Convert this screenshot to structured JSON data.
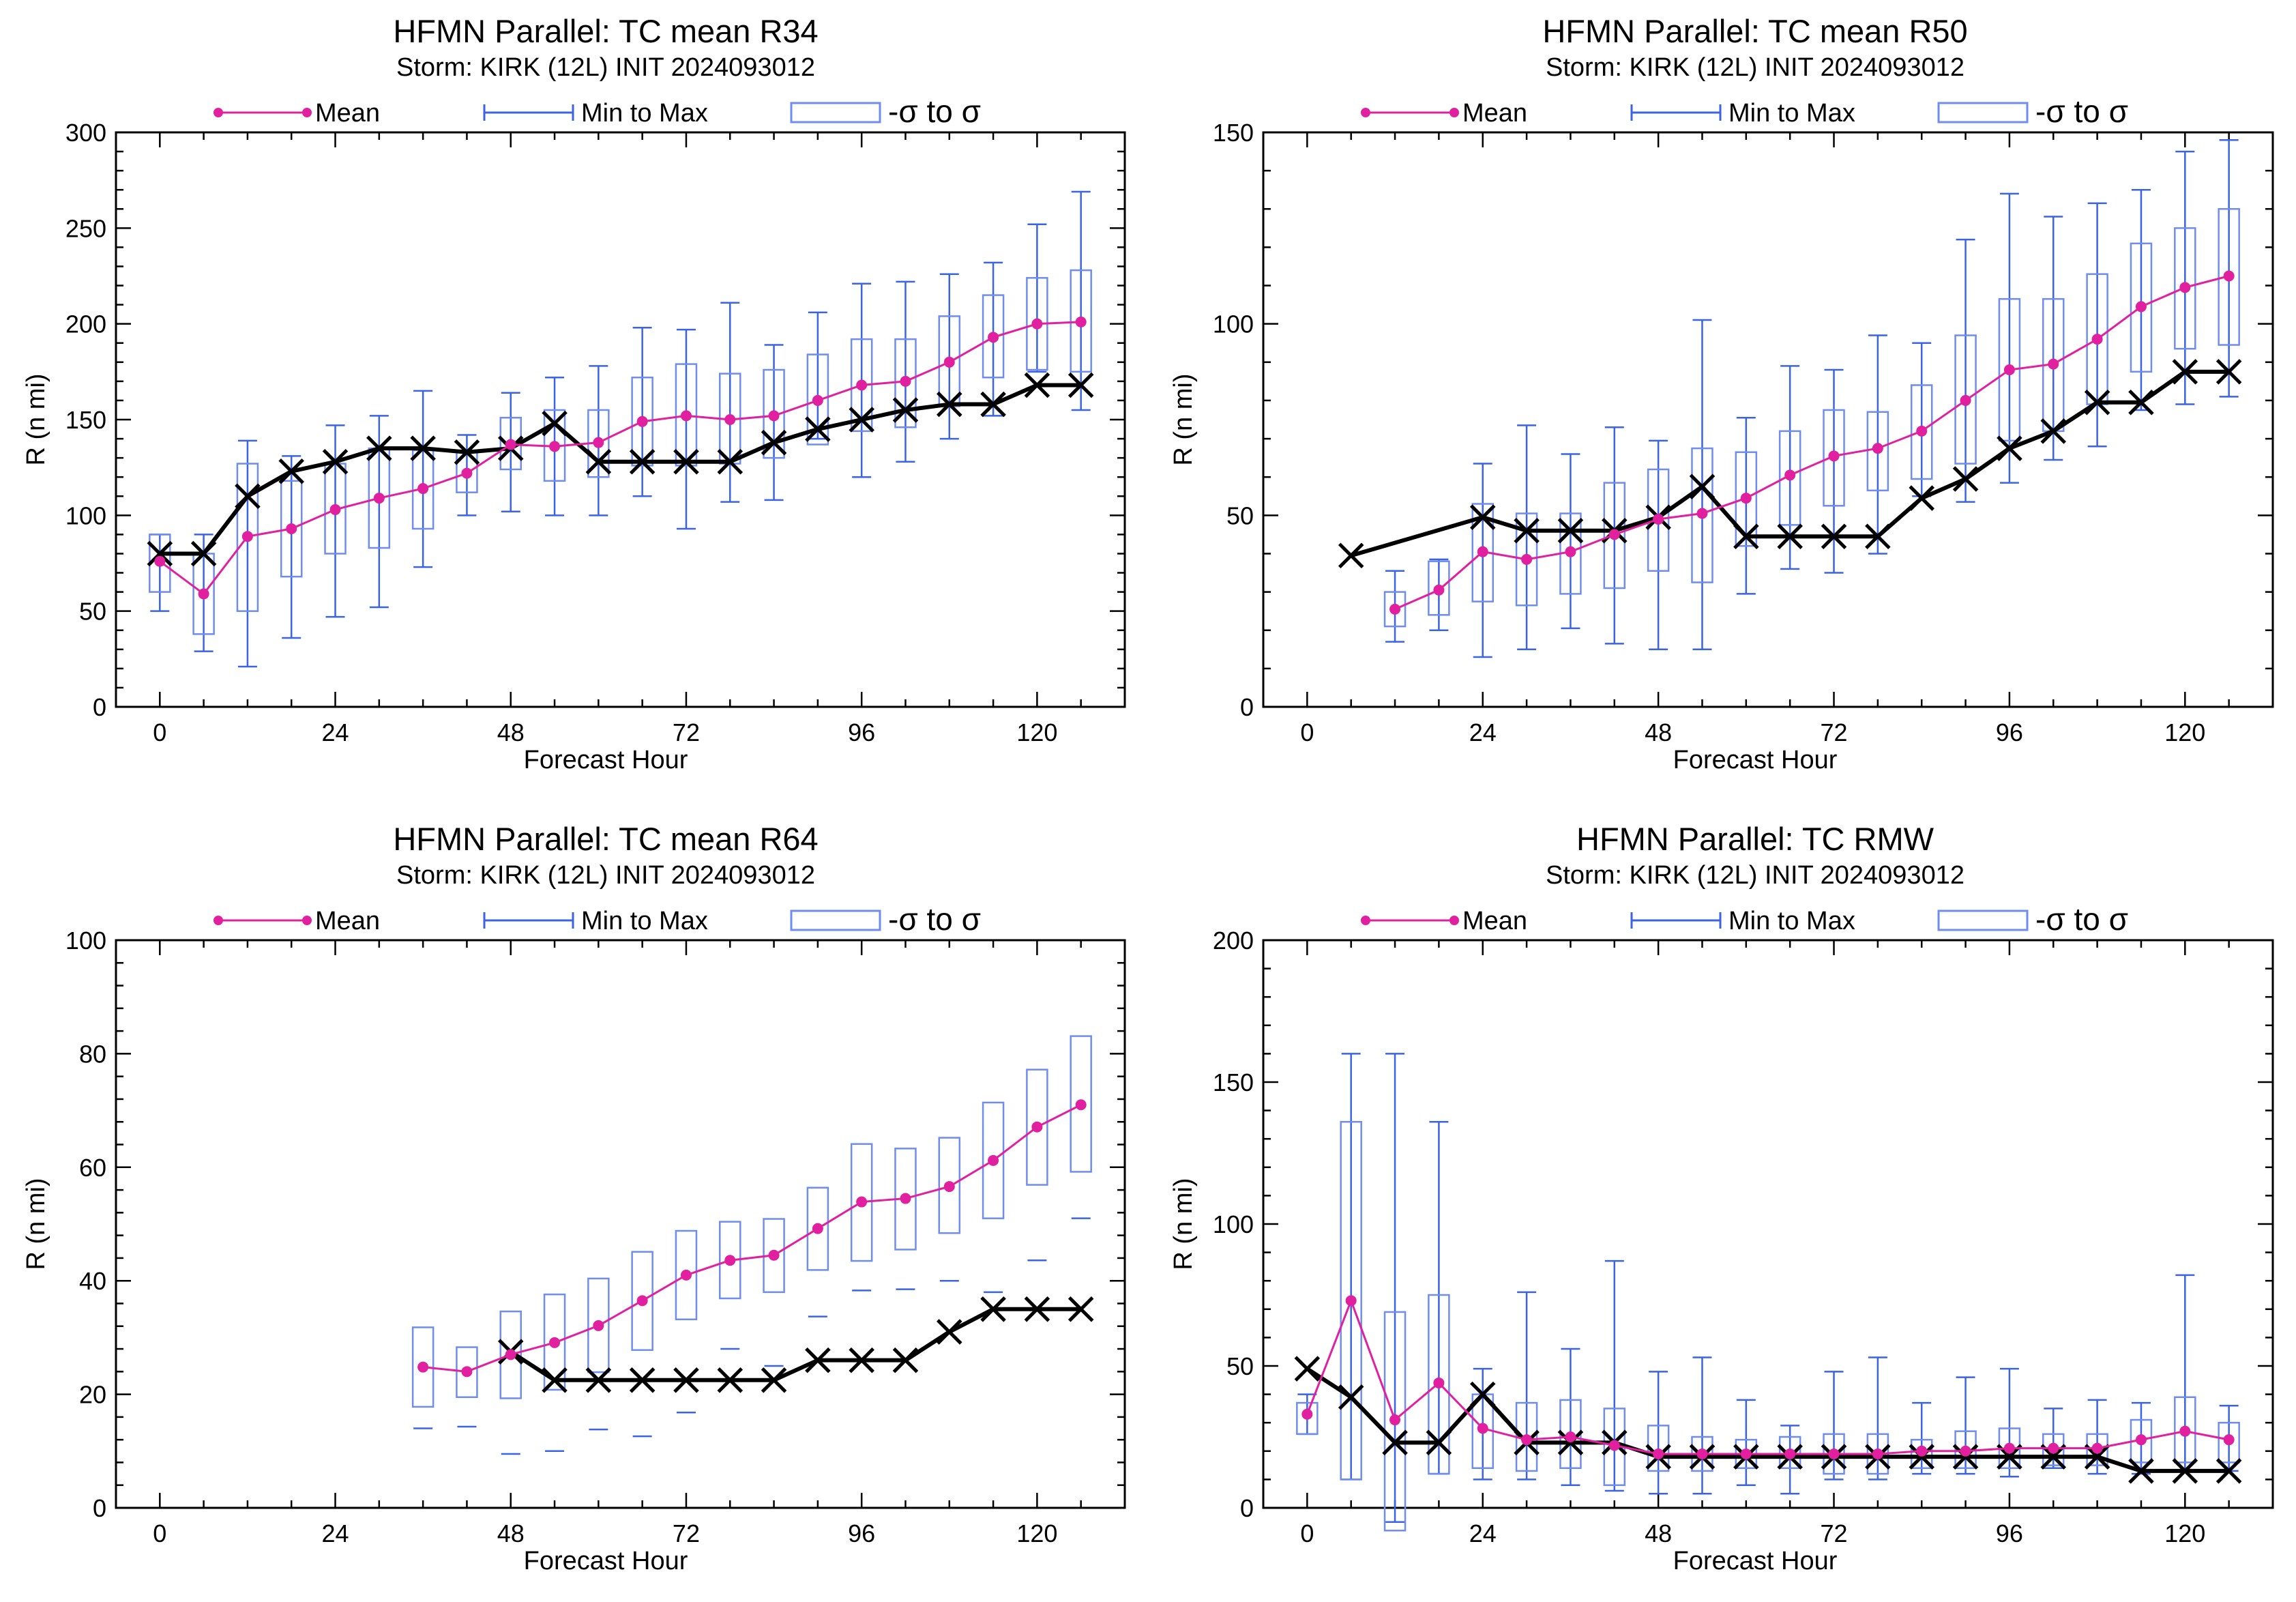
{
  "legend": {
    "mean": "Mean",
    "minmax": "Min to Max",
    "sigma": "-σ to σ",
    "colors": {
      "mean": "#e0209f",
      "minmax": "#3b63e6",
      "sigma": "#6f8cf0",
      "observed": "#000000"
    }
  },
  "chart_data": [
    {
      "type": "line",
      "title": "HFMN Parallel: TC mean R34",
      "subtitle": "Storm: KIRK (12L) INIT 2024093012",
      "xlabel": "Forecast Hour",
      "ylabel": "R (n mi)",
      "xlim": [
        -6,
        132
      ],
      "ylim": [
        0,
        300
      ],
      "xticks": [
        0,
        24,
        48,
        72,
        96,
        120
      ],
      "yticks": [
        0,
        50,
        100,
        150,
        200,
        250,
        300
      ],
      "legend_position": "top",
      "grid": false,
      "x": [
        0,
        6,
        12,
        18,
        24,
        30,
        36,
        42,
        48,
        54,
        60,
        66,
        72,
        78,
        84,
        90,
        96,
        102,
        108,
        114,
        120,
        126
      ],
      "series": [
        {
          "name": "Mean",
          "values": [
            76,
            59,
            89,
            93,
            103,
            109,
            114,
            122,
            137,
            136,
            138,
            149,
            152,
            150,
            152,
            160,
            168,
            170,
            180,
            193,
            200,
            201
          ]
        },
        {
          "name": "Min to Max",
          "min": [
            50,
            29,
            21,
            36,
            47,
            52,
            73,
            100,
            102,
            100,
            100,
            110,
            93,
            107,
            108,
            140,
            120,
            128,
            140,
            152,
            175,
            155
          ],
          "max": [
            90,
            90,
            139,
            131,
            147,
            152,
            165,
            142,
            164,
            172,
            178,
            198,
            197,
            211,
            189,
            206,
            221,
            222,
            226,
            232,
            252,
            269
          ]
        },
        {
          "name": "-σ to σ",
          "low": [
            60,
            38,
            50,
            68,
            80,
            83,
            93,
            112,
            124,
            118,
            120,
            126,
            126,
            127,
            130,
            137,
            144,
            146,
            157,
            172,
            176,
            175
          ],
          "high": [
            90,
            80,
            127,
            118,
            127,
            135,
            134,
            133,
            151,
            155,
            155,
            172,
            179,
            174,
            176,
            184,
            192,
            192,
            204,
            215,
            224,
            228
          ]
        },
        {
          "name": "",
          "x": [
            0,
            6,
            12,
            18,
            24,
            30,
            36,
            42,
            48,
            54,
            60,
            66,
            72,
            78,
            84,
            90,
            96,
            102,
            108,
            114,
            120,
            126
          ],
          "values": [
            80,
            80,
            110,
            123,
            128,
            135,
            135,
            133,
            135,
            148,
            128,
            128,
            128,
            128,
            138,
            145,
            150,
            155,
            158,
            158,
            168,
            168
          ]
        }
      ]
    },
    {
      "type": "line",
      "title": "HFMN Parallel: TC mean R50",
      "subtitle": "Storm: KIRK (12L) INIT 2024093012",
      "xlabel": "Forecast Hour",
      "ylabel": "R (n mi)",
      "xlim": [
        -6,
        132
      ],
      "ylim": [
        0,
        150
      ],
      "xticks": [
        0,
        24,
        48,
        72,
        96,
        120
      ],
      "yticks": [
        0,
        50,
        100,
        150
      ],
      "legend_position": "top",
      "grid": false,
      "x": [
        12,
        18,
        24,
        30,
        36,
        42,
        48,
        54,
        60,
        66,
        72,
        78,
        84,
        90,
        96,
        102,
        108,
        114,
        120,
        126
      ],
      "series": [
        {
          "name": "Mean",
          "values": [
            25.5,
            30.5,
            40.5,
            38.5,
            40.5,
            45,
            49,
            50.5,
            54.5,
            60.5,
            65.5,
            67.5,
            72,
            80,
            88,
            89.5,
            96,
            104.5,
            109.5,
            112.5
          ]
        },
        {
          "name": "Min to Max",
          "min": [
            17,
            20,
            13,
            15,
            20.5,
            16.5,
            15,
            15,
            29.5,
            36,
            35,
            40,
            55,
            53.5,
            58.5,
            64.5,
            68,
            77.5,
            79,
            81
          ],
          "max": [
            35.5,
            38.5,
            63.5,
            73.5,
            66,
            73,
            69.5,
            101,
            75.5,
            89,
            88,
            97,
            95,
            122,
            134,
            128,
            131.5,
            135,
            145,
            148
          ]
        },
        {
          "name": "-σ to σ",
          "low": [
            21,
            24,
            27.5,
            26.5,
            29.5,
            31,
            35.5,
            32.5,
            42,
            47.5,
            52.5,
            56.5,
            59.5,
            63.5,
            69.5,
            72,
            79,
            87.5,
            93.5,
            94.5
          ],
          "high": [
            30,
            38,
            53,
            50.5,
            50.5,
            58.5,
            62,
            67.5,
            66.5,
            72,
            77.5,
            77,
            84,
            97,
            106.5,
            106.5,
            113,
            121,
            125,
            130
          ]
        },
        {
          "name": "",
          "x": [
            6,
            24,
            30,
            36,
            42,
            48,
            54,
            60,
            66,
            72,
            78,
            84,
            90,
            96,
            102,
            108,
            114,
            120,
            126
          ],
          "values": [
            39.5,
            49.5,
            46,
            46,
            46,
            49.5,
            57.5,
            44.5,
            44.5,
            44.5,
            44.5,
            54.5,
            59.5,
            67.5,
            72,
            79.5,
            79.5,
            87.5,
            87.5
          ]
        }
      ]
    },
    {
      "type": "line",
      "title": "HFMN Parallel: TC mean R64",
      "subtitle": "Storm: KIRK (12L) INIT 2024093012",
      "xlabel": "Forecast Hour",
      "ylabel": "R (n mi)",
      "xlim": [
        -6,
        132
      ],
      "ylim": [
        0,
        100
      ],
      "xticks": [
        0,
        24,
        48,
        72,
        96,
        120
      ],
      "yticks": [
        0,
        20,
        40,
        60,
        80,
        100
      ],
      "legend_position": "top",
      "grid": false,
      "x": [
        36,
        42,
        48,
        54,
        60,
        66,
        72,
        78,
        84,
        90,
        96,
        102,
        108,
        114,
        120,
        126
      ],
      "series": [
        {
          "name": "Mean",
          "values": [
            24.8,
            24,
            27,
            29.1,
            32.1,
            36.5,
            41,
            43.6,
            44.5,
            49.2,
            53.9,
            54.5,
            56.6,
            61.2,
            67.1,
            71
          ]
        },
        {
          "name": "Min to Max",
          "min": [
            14,
            14.3,
            9.5,
            10,
            13.8,
            12.6,
            16.8,
            28,
            25,
            33.7,
            38.3,
            38.5,
            40,
            38,
            43.6,
            51
          ]
        },
        {
          "name": "-σ to σ",
          "low": [
            17.8,
            19.5,
            19.3,
            20.8,
            23.9,
            27.8,
            33.2,
            36.9,
            38,
            41.9,
            43.5,
            45.5,
            48.4,
            51,
            56.9,
            59.2
          ],
          "high": [
            31.8,
            28.3,
            34.6,
            37.6,
            40.4,
            45.1,
            48.8,
            50.4,
            50.9,
            56.4,
            64.1,
            63.3,
            65.2,
            71.4,
            77.2,
            83.1
          ]
        },
        {
          "name": "",
          "x": [
            48,
            54,
            60,
            66,
            72,
            78,
            84,
            90,
            96,
            102,
            108,
            114,
            120,
            126
          ],
          "values": [
            27.5,
            22.5,
            22.5,
            22.5,
            22.5,
            22.5,
            22.5,
            26,
            26,
            26,
            31,
            35,
            35,
            35
          ]
        }
      ]
    },
    {
      "type": "line",
      "title": "HFMN Parallel: TC RMW",
      "subtitle": "Storm: KIRK (12L) INIT 2024093012",
      "xlabel": "Forecast Hour",
      "ylabel": "R (n mi)",
      "xlim": [
        -6,
        132
      ],
      "ylim": [
        0,
        200
      ],
      "xticks": [
        0,
        24,
        48,
        72,
        96,
        120
      ],
      "yticks": [
        0,
        50,
        100,
        150,
        200
      ],
      "legend_position": "top",
      "grid": false,
      "x": [
        0,
        6,
        12,
        18,
        24,
        30,
        36,
        42,
        48,
        54,
        60,
        66,
        72,
        78,
        84,
        90,
        96,
        102,
        108,
        114,
        120,
        126
      ],
      "series": [
        {
          "name": "Mean",
          "values": [
            33,
            73,
            31,
            44,
            28,
            24,
            25,
            22,
            19,
            19,
            19,
            19,
            19,
            19,
            20,
            20,
            21,
            21,
            21,
            24,
            27,
            24
          ]
        },
        {
          "name": "Min to Max",
          "min": [
            26,
            10,
            -5,
            12,
            10,
            10,
            8,
            6,
            5,
            5,
            8,
            5,
            10,
            10,
            12,
            12,
            11,
            14,
            12,
            12,
            13,
            13
          ],
          "max": [
            40,
            160,
            160,
            136,
            49,
            76,
            56,
            87,
            48,
            53,
            38,
            29,
            48,
            53,
            37,
            46,
            49,
            35,
            38,
            37,
            82,
            36
          ]
        },
        {
          "name": "-σ to σ",
          "low": [
            26,
            10,
            -8,
            12,
            14,
            13,
            14,
            8,
            13,
            13,
            14,
            14,
            12,
            12,
            14,
            14,
            14,
            15,
            15,
            16,
            16,
            16
          ],
          "high": [
            37,
            136,
            69,
            75,
            40,
            37,
            38,
            35,
            29,
            25,
            24,
            25,
            26,
            26,
            24,
            27,
            28,
            26,
            26,
            31,
            39,
            30
          ]
        },
        {
          "name": "",
          "x": [
            0,
            6,
            12,
            18,
            24,
            30,
            36,
            42,
            48,
            54,
            60,
            66,
            72,
            78,
            84,
            90,
            96,
            102,
            108,
            114,
            120,
            126
          ],
          "values": [
            49,
            39,
            23,
            23,
            40,
            23,
            23,
            23,
            18,
            18,
            18,
            18,
            18,
            18,
            18,
            18,
            18,
            18,
            18,
            13,
            13,
            13
          ]
        }
      ]
    }
  ]
}
